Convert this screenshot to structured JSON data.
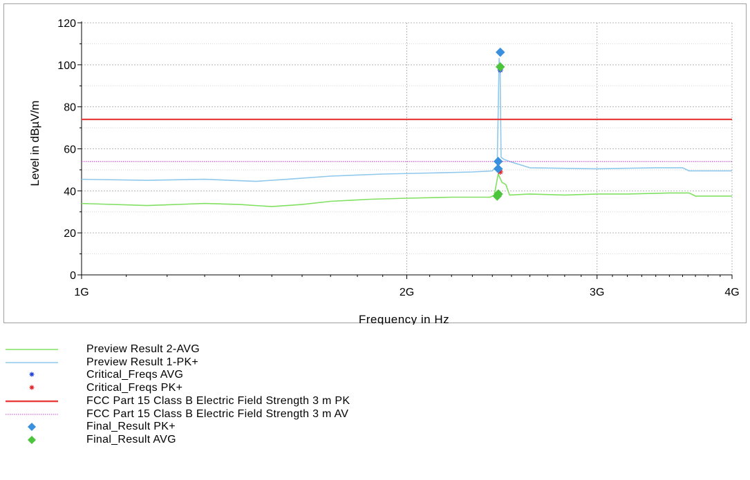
{
  "chart_data": {
    "type": "line",
    "xlabel": "Frequency in Hz",
    "ylabel": "Level in dBµV/m",
    "x_scale": "log",
    "xlim": [
      1000000000,
      4000000000
    ],
    "ylim": [
      0,
      120
    ],
    "x_ticks": [
      {
        "value": 1000000000,
        "label": "1G"
      },
      {
        "value": 2000000000,
        "label": "2G"
      },
      {
        "value": 3000000000,
        "label": "3G"
      },
      {
        "value": 4000000000,
        "label": "4G"
      }
    ],
    "y_ticks": [
      {
        "value": 0,
        "label": "0"
      },
      {
        "value": 20,
        "label": "20"
      },
      {
        "value": 40,
        "label": "40"
      },
      {
        "value": 60,
        "label": "60"
      },
      {
        "value": 80,
        "label": "80"
      },
      {
        "value": 100,
        "label": "100"
      },
      {
        "value": 120,
        "label": "120"
      }
    ],
    "grid": true,
    "legend_position": "bottom",
    "series": [
      {
        "name": "Preview Result 2-AVG",
        "kind": "line",
        "color": "#80e060",
        "x": [
          1000000000,
          1150000000,
          1300000000,
          1400000000,
          1500000000,
          1600000000,
          1700000000,
          1850000000,
          2000000000,
          2200000000,
          2390000000,
          2410000000,
          2430000000,
          2450000000,
          2470000000,
          2490000000,
          2600000000,
          2800000000,
          3000000000,
          3200000000,
          3500000000,
          3650000000,
          3700000000,
          4000000000
        ],
        "y": [
          34,
          33,
          34,
          33.5,
          32.5,
          33.5,
          35,
          36,
          36.5,
          37,
          37,
          38,
          48,
          44,
          43,
          38,
          38.5,
          38,
          38.5,
          38.5,
          39,
          39,
          37.5,
          37.5
        ]
      },
      {
        "name": "Preview Result 1-PK+",
        "kind": "line",
        "color": "#8ec8ec",
        "x": [
          1000000000,
          1150000000,
          1300000000,
          1450000000,
          1550000000,
          1700000000,
          1900000000,
          2100000000,
          2300000000,
          2400000000,
          2425000000,
          2435000000,
          2440000000,
          2445000000,
          2460000000,
          2490000000,
          2600000000,
          3000000000,
          3400000000,
          3600000000,
          3650000000,
          4000000000
        ],
        "y": [
          45.5,
          45,
          45.5,
          44.5,
          45.5,
          47,
          48,
          48.5,
          49,
          49.5,
          52,
          103,
          98,
          56,
          55,
          54,
          51,
          50.5,
          51,
          51,
          49.5,
          49.5
        ]
      },
      {
        "name": "Critical_Freqs AVG",
        "kind": "marker",
        "marker": "asterisk",
        "color": "#1a3cd8",
        "x": [
          2441000000
        ],
        "y": [
          97.5
        ]
      },
      {
        "name": "Critical_Freqs PK+",
        "kind": "marker",
        "marker": "asterisk",
        "color": "#e02020",
        "x": [
          2441000000
        ],
        "y": [
          49
        ]
      },
      {
        "name": "FCC Part 15 Class B Electric Field Strength 3 m PK",
        "kind": "limit-line",
        "color": "#e84040",
        "x": [
          1000000000,
          4000000000
        ],
        "y": [
          74,
          74
        ]
      },
      {
        "name": "FCC Part 15 Class B Electric Field Strength 3 m AV",
        "kind": "limit-line-dotted",
        "color": "#d040d0",
        "x": [
          1000000000,
          4000000000
        ],
        "y": [
          54,
          54
        ]
      },
      {
        "name": "Final_Result PK+",
        "kind": "marker",
        "marker": "diamond",
        "color": "#3a90dc",
        "x": [
          2441000000,
          2430000000,
          2430000000
        ],
        "y": [
          106,
          54,
          50.5
        ]
      },
      {
        "name": "Final_Result AVG",
        "kind": "marker",
        "marker": "diamond",
        "color": "#4cc43c",
        "x": [
          2441000000,
          2425000000,
          2431000000
        ],
        "y": [
          99,
          37.5,
          38.5
        ]
      }
    ]
  }
}
